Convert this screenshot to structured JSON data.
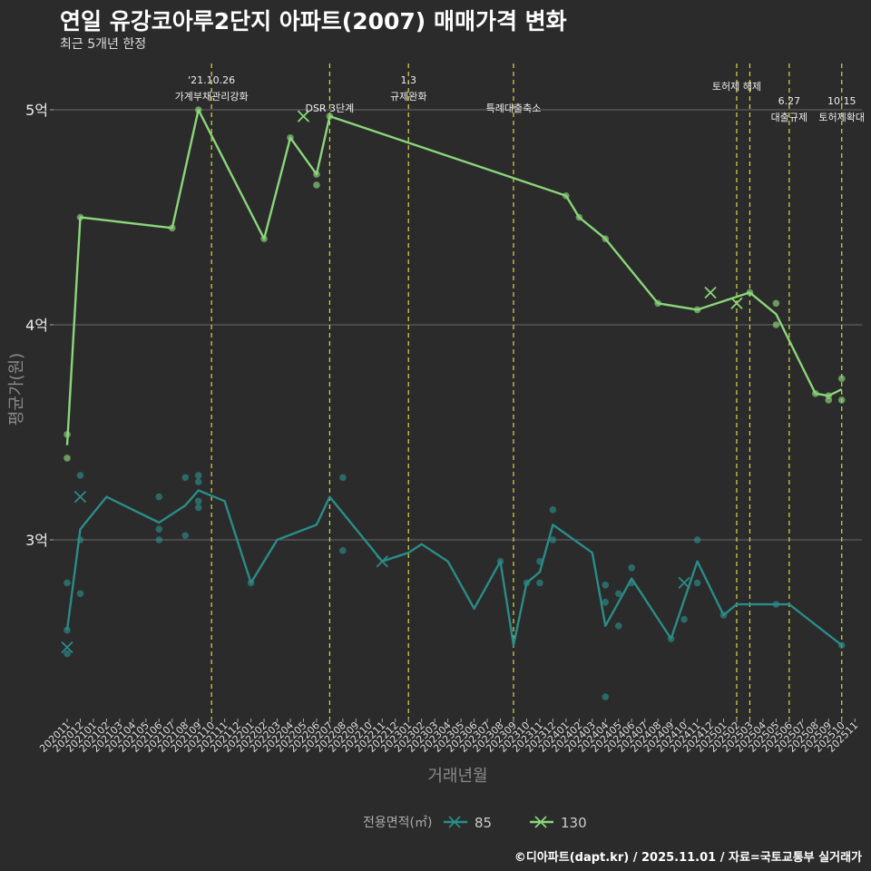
{
  "title": "연일 유강코아루2단지 아파트(2007) 매매가격 변화",
  "subtitle": "최근 5개년 한정",
  "caption": "©디아파트(dapt.kr) / 2025.11.01 / 자료=국토교통부 실거래가",
  "colors": {
    "background": "#2b2b2b",
    "series85": "#2a8c88",
    "series130": "#8ad67a",
    "eventLine": "#d8d84a",
    "grid": "#6a6a6a"
  },
  "chart_data": {
    "type": "line",
    "title": "연일 유강코아루2단지 아파트(2007) 매매가격 변화",
    "xlabel": "거래년월",
    "ylabel": "평균가(원)",
    "ylim": [
      2.2,
      5.3
    ],
    "y_ticks": [
      {
        "value": 3,
        "label": "3억"
      },
      {
        "value": 4,
        "label": "4억"
      },
      {
        "value": 5,
        "label": "5억"
      }
    ],
    "x_labels": [
      "202011",
      "202012",
      "202101",
      "202102",
      "202103",
      "202104",
      "202105",
      "202106",
      "202107",
      "202108",
      "202109",
      "202110",
      "202111",
      "202112",
      "202201",
      "202202",
      "202203",
      "202204",
      "202205",
      "202206",
      "202207",
      "202208",
      "202209",
      "202210",
      "202211",
      "202212",
      "202301",
      "202302",
      "202303",
      "202304",
      "202305",
      "202306",
      "202307",
      "202308",
      "202309",
      "202310",
      "202311",
      "202312",
      "202401",
      "202402",
      "202403",
      "202404",
      "202405",
      "202406",
      "202407",
      "202408",
      "202409",
      "202410",
      "202411",
      "202412",
      "202501",
      "202502",
      "202503",
      "202504",
      "202505",
      "202506",
      "202507",
      "202508",
      "202509",
      "202510",
      "202511"
    ],
    "legend_title": "전용면적(㎡)",
    "events": [
      {
        "x": 11,
        "label": "'21.10.26\n가계부채관리강화",
        "level": 0
      },
      {
        "x": 20,
        "label": "DSR 3단계",
        "level": 2
      },
      {
        "x": 26,
        "label": "1.3\n규제완화",
        "level": 0
      },
      {
        "x": 34,
        "label": "특례대출축소",
        "level": 2
      },
      {
        "x": 51,
        "label": "토허제 해제",
        "level": 1
      },
      {
        "x": 52,
        "label": "",
        "level": 1
      },
      {
        "x": 55,
        "label": "6.27\n대출규제",
        "level": 3
      },
      {
        "x": 59,
        "label": "10.15\n토허제확대",
        "level": 3
      }
    ],
    "series": [
      {
        "name": "85",
        "color": "#2a8c88",
        "line": [
          [
            0,
            2.58
          ],
          [
            1,
            3.05
          ],
          [
            3,
            3.2
          ],
          [
            7,
            3.08
          ],
          [
            9,
            3.16
          ],
          [
            10,
            3.23
          ],
          [
            12,
            3.18
          ],
          [
            14,
            2.8
          ],
          [
            16,
            3.0
          ],
          [
            19,
            3.07
          ],
          [
            20,
            3.2
          ],
          [
            24,
            2.9
          ],
          [
            26,
            2.94
          ],
          [
            27,
            2.98
          ],
          [
            29,
            2.9
          ],
          [
            31,
            2.68
          ],
          [
            33,
            2.9
          ],
          [
            34,
            2.51
          ],
          [
            35,
            2.8
          ],
          [
            36,
            2.85
          ],
          [
            37,
            3.07
          ],
          [
            40,
            2.94
          ],
          [
            41,
            2.6
          ],
          [
            43,
            2.82
          ],
          [
            46,
            2.54
          ],
          [
            48,
            2.9
          ],
          [
            50,
            2.65
          ],
          [
            51,
            2.7
          ],
          [
            54,
            2.7
          ],
          [
            55,
            2.7
          ],
          [
            59,
            2.51
          ]
        ],
        "points": [
          [
            0,
            2.8
          ],
          [
            0,
            2.47
          ],
          [
            0,
            2.58
          ],
          [
            1,
            3.3
          ],
          [
            1,
            3.0
          ],
          [
            1,
            2.75
          ],
          [
            7,
            3.2
          ],
          [
            7,
            3.05
          ],
          [
            7,
            3.0
          ],
          [
            9,
            3.29
          ],
          [
            9,
            3.02
          ],
          [
            10,
            3.3
          ],
          [
            10,
            3.27
          ],
          [
            10,
            3.18
          ],
          [
            10,
            3.15
          ],
          [
            14,
            2.8
          ],
          [
            21,
            3.29
          ],
          [
            21,
            2.95
          ],
          [
            33,
            2.9
          ],
          [
            35,
            2.8
          ],
          [
            36,
            2.9
          ],
          [
            36,
            2.8
          ],
          [
            37,
            3.14
          ],
          [
            37,
            3.0
          ],
          [
            41,
            2.79
          ],
          [
            41,
            2.71
          ],
          [
            41,
            2.27
          ],
          [
            42,
            2.75
          ],
          [
            42,
            2.6
          ],
          [
            43,
            2.87
          ],
          [
            43,
            2.8
          ],
          [
            46,
            2.54
          ],
          [
            47,
            2.63
          ],
          [
            48,
            3.0
          ],
          [
            48,
            2.8
          ],
          [
            50,
            2.65
          ],
          [
            54,
            2.7
          ],
          [
            59,
            2.51
          ]
        ],
        "crosses": [
          [
            0,
            2.5
          ],
          [
            1,
            3.2
          ],
          [
            24,
            2.9
          ],
          [
            47,
            2.8
          ]
        ]
      },
      {
        "name": "130",
        "color": "#8ad67a",
        "line": [
          [
            0,
            3.44
          ],
          [
            1,
            4.5
          ],
          [
            8,
            4.45
          ],
          [
            10,
            5.0
          ],
          [
            15,
            4.4
          ],
          [
            17,
            4.87
          ],
          [
            19,
            4.7
          ],
          [
            20,
            4.97
          ],
          [
            38,
            4.6
          ],
          [
            39,
            4.5
          ],
          [
            41,
            4.4
          ],
          [
            45,
            4.1
          ],
          [
            48,
            4.07
          ],
          [
            52,
            4.15
          ],
          [
            54,
            4.05
          ],
          [
            57,
            3.68
          ],
          [
            58,
            3.67
          ],
          [
            59,
            3.7
          ]
        ],
        "points": [
          [
            0,
            3.49
          ],
          [
            0,
            3.38
          ],
          [
            1,
            4.5
          ],
          [
            8,
            4.45
          ],
          [
            10,
            5.0
          ],
          [
            15,
            4.4
          ],
          [
            17,
            4.87
          ],
          [
            19,
            4.7
          ],
          [
            19,
            4.65
          ],
          [
            20,
            4.97
          ],
          [
            38,
            4.6
          ],
          [
            39,
            4.5
          ],
          [
            41,
            4.4
          ],
          [
            45,
            4.1
          ],
          [
            48,
            4.07
          ],
          [
            52,
            4.15
          ],
          [
            54,
            4.1
          ],
          [
            54,
            4.0
          ],
          [
            57,
            3.68
          ],
          [
            58,
            3.65
          ],
          [
            58,
            3.67
          ],
          [
            59,
            3.75
          ],
          [
            59,
            3.65
          ]
        ],
        "crosses": [
          [
            18,
            4.97
          ],
          [
            49,
            4.15
          ],
          [
            51,
            4.1
          ]
        ]
      }
    ]
  }
}
